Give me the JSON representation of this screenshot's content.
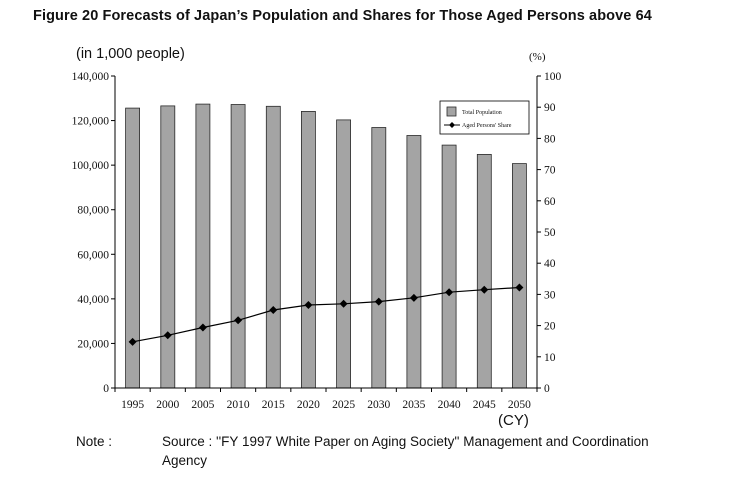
{
  "title": "Figure 20 Forecasts of Japan’s Population and Shares for Those Aged Persons above 64",
  "left_axis_unit": "(in 1,000 people)",
  "right_axis_unit": "(%)",
  "x_unit": "(CY)",
  "note": {
    "label": "Note :",
    "source_line1": "Source : ''FY 1997 White Paper on Aging Society'' Management and Coordination",
    "source_line2": "Agency"
  },
  "colors": {
    "bar_fill": "#a4a4a4",
    "bar_stroke": "#2a2a2a",
    "line": "#000000"
  },
  "chart_data": {
    "type": "bar",
    "categories": [
      "1995",
      "2000",
      "2005",
      "2010",
      "2015",
      "2020",
      "2025",
      "2030",
      "2035",
      "2040",
      "2045",
      "2050"
    ],
    "series": [
      {
        "name": "Total Population",
        "type": "bar",
        "axis": "left",
        "values": [
          125600,
          126600,
          127400,
          127200,
          126400,
          124100,
          120300,
          116900,
          113300,
          109000,
          104800,
          100700
        ]
      },
      {
        "name": "Aged Persons' Share",
        "type": "line",
        "marker": "diamond",
        "axis": "right",
        "values": [
          14.8,
          16.9,
          19.4,
          21.7,
          25.0,
          26.6,
          27.0,
          27.7,
          28.9,
          30.7,
          31.5,
          32.2
        ]
      }
    ],
    "y_left": {
      "ylim": [
        0,
        140000
      ],
      "ticks": [
        "0",
        "20,000",
        "40,000",
        "60,000",
        "80,000",
        "100,000",
        "120,000",
        "140,000"
      ]
    },
    "y_right": {
      "ylim": [
        0,
        100
      ],
      "ticks": [
        "0",
        "10",
        "20",
        "30",
        "40",
        "50",
        "60",
        "70",
        "80",
        "90",
        "100"
      ]
    },
    "grid": false,
    "legend_position": "top-right"
  }
}
